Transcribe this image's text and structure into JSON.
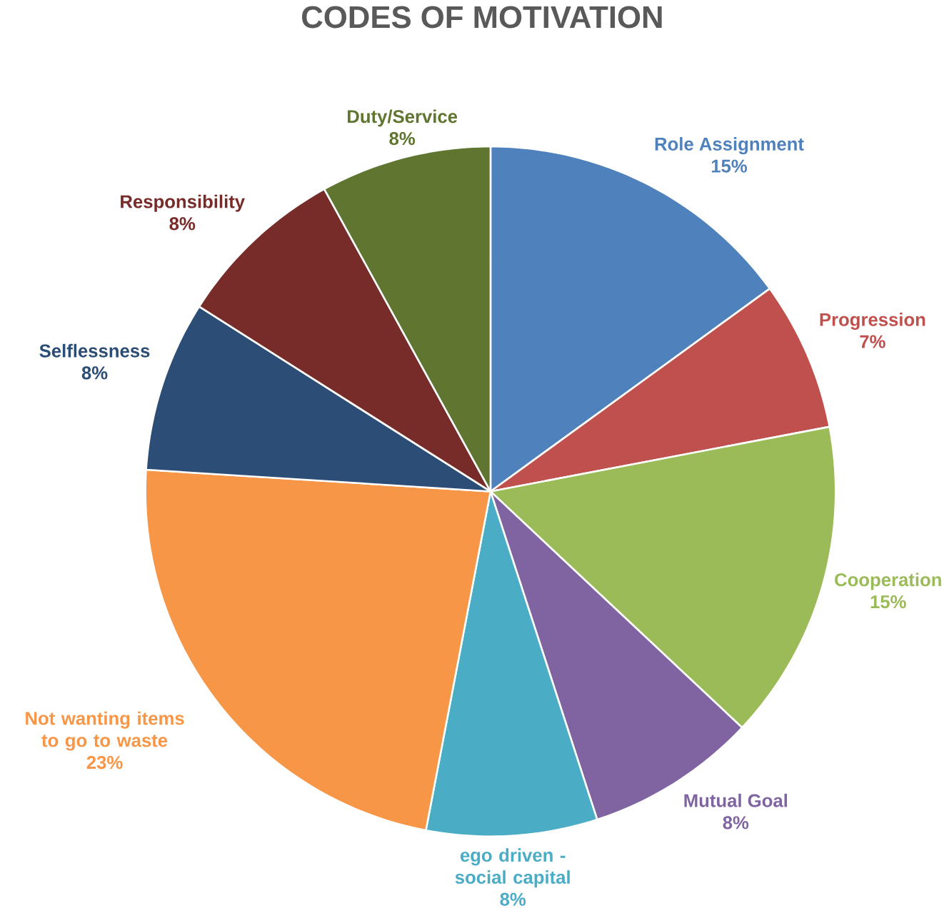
{
  "chart_data": {
    "type": "pie",
    "title": "CODES OF MOTIVATION",
    "categories": [
      "Role Assignment",
      "Progression",
      "Cooperation",
      "Mutual Goal",
      "ego driven - social capital",
      "Not wanting items to go to waste",
      "Selflessness",
      "Responsibility",
      "Duty/Service"
    ],
    "values": [
      15,
      7,
      15,
      8,
      8,
      23,
      8,
      8,
      8
    ],
    "colors": [
      "#4f81bd",
      "#c0504d",
      "#9bbb59",
      "#8064a2",
      "#4bacc6",
      "#f79646",
      "#2c4d75",
      "#772c2a",
      "#5f7530"
    ],
    "value_labels": [
      "15%",
      "7%",
      "15%",
      "8%",
      "8%",
      "23%",
      "8%",
      "8%",
      "8%"
    ]
  }
}
